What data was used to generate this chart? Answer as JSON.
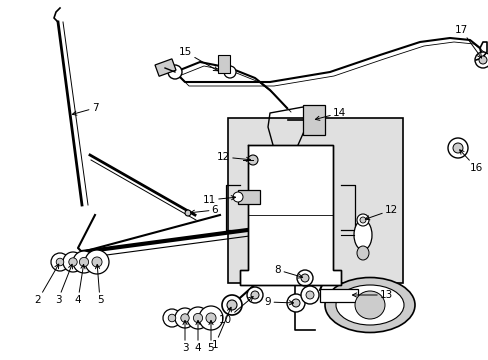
{
  "bg_color": "#ffffff",
  "lc": "#000000",
  "gray": "#aaaaaa",
  "lgray": "#cccccc",
  "dgray": "#888888",
  "box_bg": "#e0e0e0",
  "figsize": [
    4.89,
    3.6
  ],
  "dpi": 100,
  "xlim": [
    0,
    489
  ],
  "ylim": [
    0,
    360
  ]
}
